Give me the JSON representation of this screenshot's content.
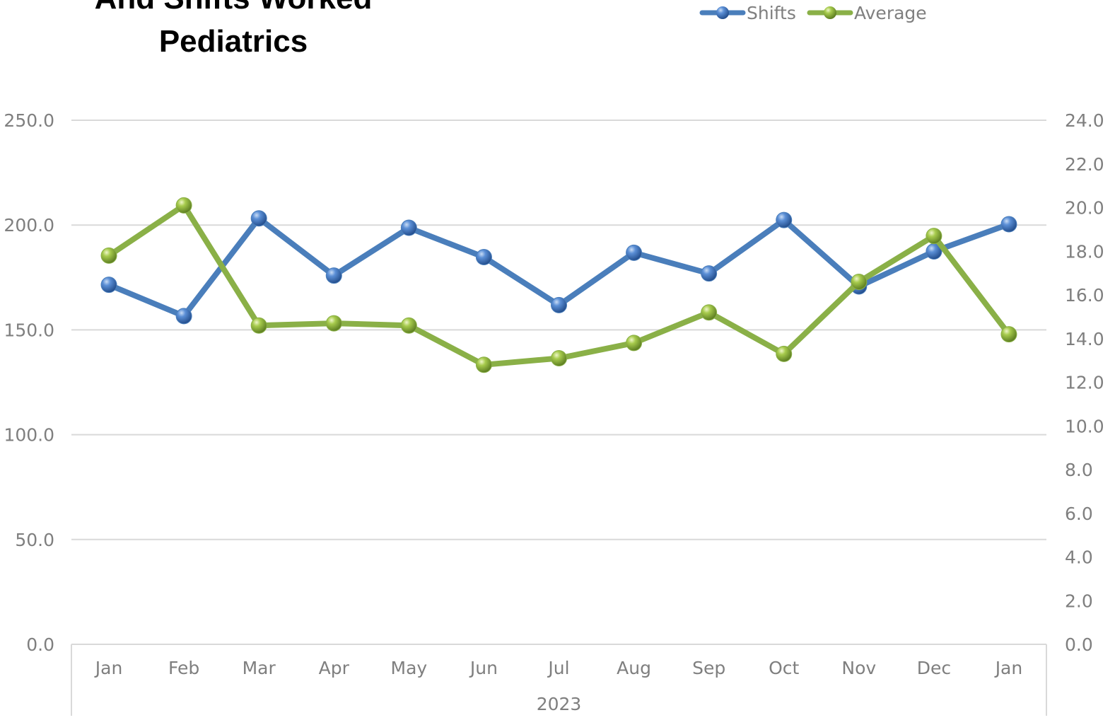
{
  "chart_data": {
    "type": "line",
    "title": [
      "And Shifts Worked",
      "Pediatrics"
    ],
    "categories": [
      "Jan",
      "Feb",
      "Mar",
      "Apr",
      "May",
      "Jun",
      "Jul",
      "Aug",
      "Sep",
      "Oct",
      "Nov",
      "Dec",
      "Jan"
    ],
    "group_label": "2023",
    "y_left": {
      "ylim": [
        0,
        250
      ],
      "ticks": [
        "0.0",
        "50.0",
        "100.0",
        "150.0",
        "200.0",
        "250.0"
      ]
    },
    "y_right": {
      "ylim": [
        0,
        24
      ],
      "ticks": [
        "0.0",
        "2.0",
        "4.0",
        "6.0",
        "8.0",
        "10.0",
        "12.0",
        "14.0",
        "16.0",
        "18.0",
        "20.0",
        "22.0",
        "24.0"
      ]
    },
    "grid": true,
    "legend_position": "top-right",
    "series": [
      {
        "name": "Shifts",
        "axis": "left",
        "color": "#4a7ebb",
        "values": [
          171.5,
          156.6,
          203.2,
          175.9,
          198.7,
          184.7,
          161.8,
          186.8,
          176.9,
          202.4,
          170.7,
          187.4,
          200.4
        ]
      },
      {
        "name": "Average",
        "axis": "right",
        "color": "#8ab047",
        "values": [
          17.8,
          20.1,
          14.6,
          14.7,
          14.6,
          12.8,
          13.1,
          13.8,
          15.2,
          13.3,
          16.6,
          18.7,
          14.2
        ]
      }
    ]
  }
}
